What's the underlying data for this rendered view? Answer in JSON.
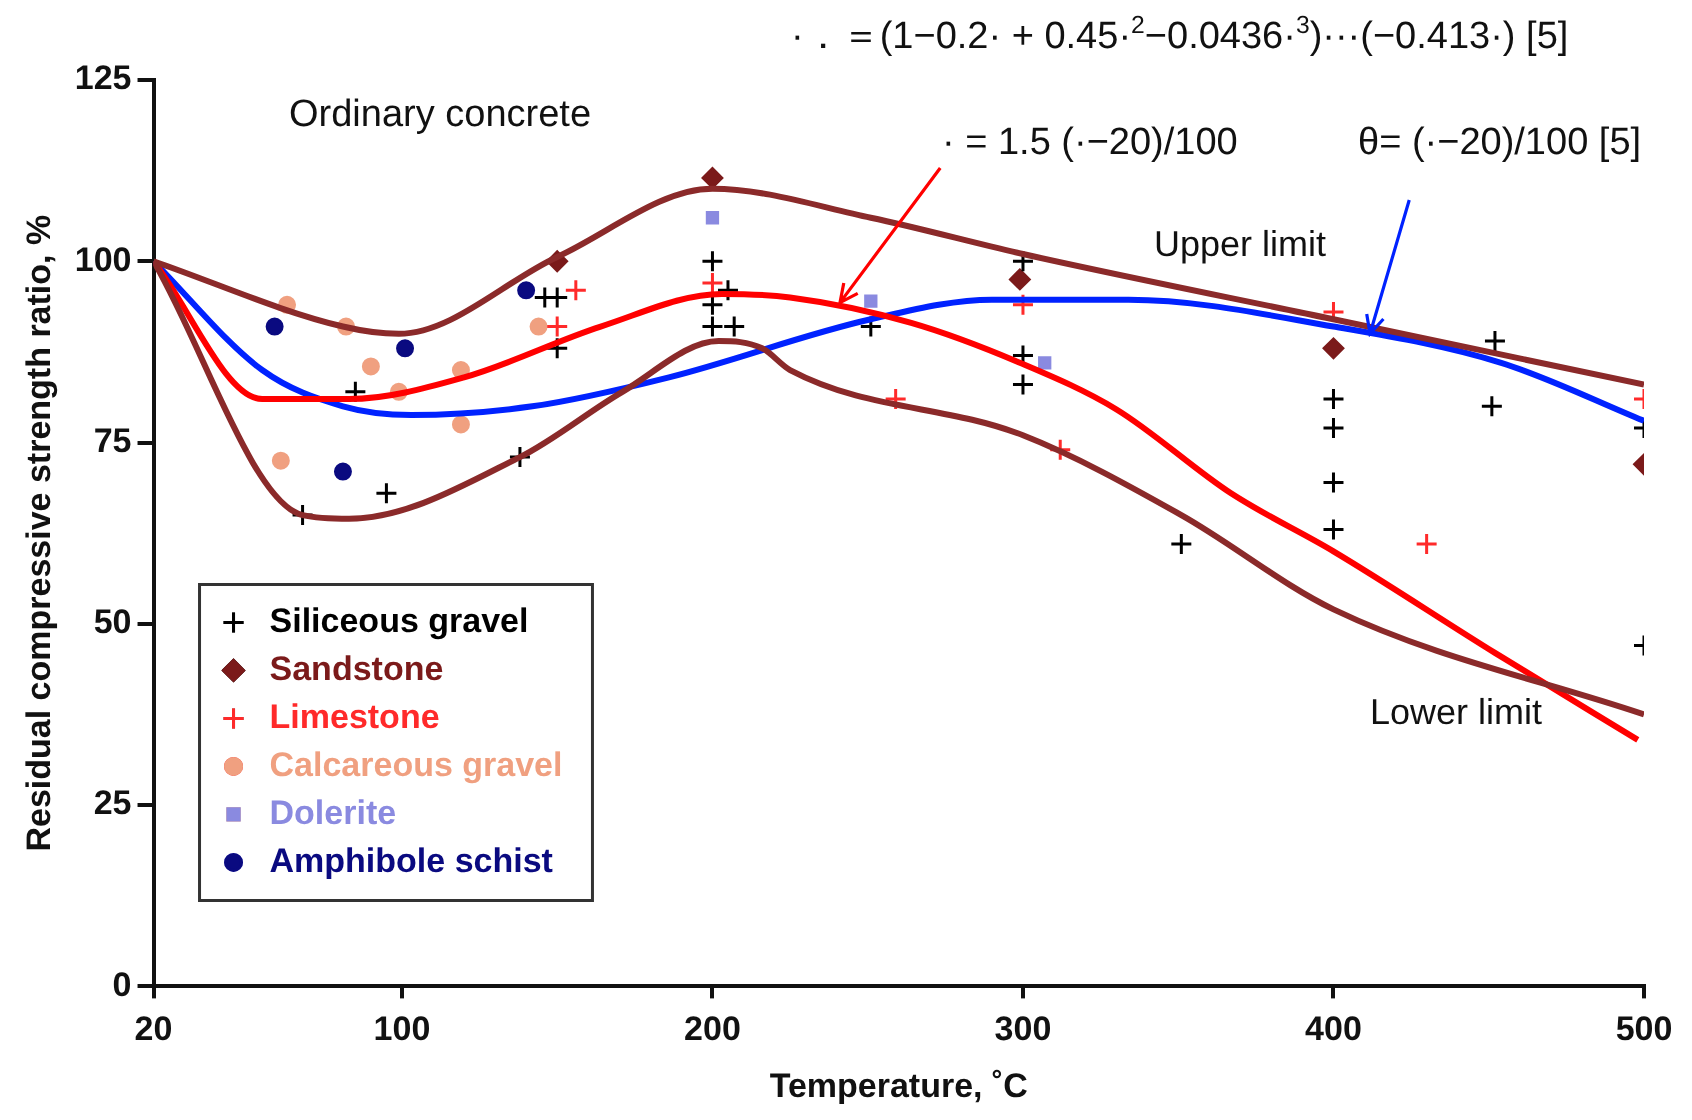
{
  "chart_data": {
    "type": "scatter",
    "xlabel": "Temperature, ˚C",
    "ylabel": "Residual compressive strength ratio, %",
    "xlim": [
      20,
      500
    ],
    "xticks": [
      20,
      100,
      200,
      300,
      400,
      500
    ],
    "ylim": [
      0,
      125
    ],
    "yticks": [
      0,
      25,
      50,
      75,
      100,
      125
    ],
    "grid": false,
    "legend": "bottom left",
    "annotations": [
      "·．＝(1−0.2· + 0.45·$^{2}$−0.0436·$^{3}$)···(−0.413·) [5]",
      "Ordinary concrete",
      {
        "text": "· = 1.5 (·−20)/100",
        "x": 241,
        "y": 94.3
      },
      {
        "text": "θ= (·−20)/100 [5]",
        "x": 412,
        "y": 90
      },
      "Upper limit",
      "Lower limit"
    ],
    "series": [
      {
        "type": "line",
        "color": "#8b2a2a",
        "marker": "none",
        "x": [
          20,
          81,
          99,
          150,
          200,
          251,
          300,
          400,
          500
        ],
        "values": [
          100,
          91,
          90,
          100.6,
          110,
          106,
          101,
          92,
          83
        ]
      },
      {
        "type": "line",
        "color": "#8b2a2a",
        "marker": "none",
        "x": [
          20,
          68,
          83,
          138,
          171,
          202,
          216,
          225,
          300,
          351,
          400,
          500
        ],
        "values": [
          100,
          65,
          64.5,
          73,
          82,
          89,
          88,
          85,
          76,
          65,
          52,
          37.5
        ]
      },
      {
        "type": "line",
        "color": "#ff0000",
        "marker": "none",
        "x": [
          20,
          55,
          83,
          120,
          164,
          203,
          225,
          264,
          299,
          330,
          367,
          400,
          452,
          498
        ],
        "values": [
          100,
          81,
          81,
          84,
          91,
          95.5,
          95,
          91.5,
          86,
          79.6,
          68,
          60,
          46,
          34
        ]
      },
      {
        "type": "line",
        "color": "#0022ff",
        "marker": "none",
        "x": [
          20,
          55,
          81,
          103,
          142,
          186,
          251,
          290,
          334,
          400,
          454,
          500
        ],
        "values": [
          100,
          85,
          80,
          78.8,
          80,
          84,
          92,
          94.7,
          94.7,
          91,
          86,
          78
        ]
      },
      {
        "name": "Siliceous gravel",
        "type": "scatter",
        "color": "#000000",
        "marker": "cross",
        "x": [
          85,
          95,
          68,
          138,
          146,
          150,
          150,
          200,
          200,
          205,
          200,
          207,
          300,
          251,
          300,
          300,
          400,
          400,
          400,
          400,
          351,
          452,
          451,
          500,
          500
        ],
        "values": [
          82,
          68,
          65,
          73,
          95,
          95,
          88,
          100,
          94,
          96,
          91,
          91,
          100,
          91,
          87,
          83,
          81,
          77,
          69.5,
          63,
          61,
          89,
          80,
          77,
          47
        ]
      },
      {
        "name": "Sandstone",
        "type": "scatter",
        "color": "#7b1a1a",
        "marker": "diamond",
        "x": [
          150,
          200,
          299,
          400,
          500
        ],
        "values": [
          100,
          111.5,
          97.5,
          88,
          72
        ]
      },
      {
        "name": "Limestone",
        "type": "scatter",
        "color": "#ff2a2a",
        "marker": "cross",
        "x": [
          156,
          150,
          200,
          259,
          312,
          400,
          430,
          500,
          300
        ],
        "values": [
          96,
          91,
          97,
          81,
          74,
          93,
          61,
          81,
          94
        ]
      },
      {
        "name": "Calcareous gravel",
        "type": "scatter",
        "color": "#f0a080",
        "marker": "circle",
        "x": [
          63,
          82,
          90,
          119,
          119,
          99,
          61,
          144
        ],
        "values": [
          94,
          91,
          85.5,
          85,
          77.5,
          82,
          72.5,
          91
        ]
      },
      {
        "name": "Dolerite",
        "type": "scatter",
        "color": "#8a8ae0",
        "marker": "square",
        "x": [
          200,
          251,
          307
        ],
        "values": [
          106,
          94.5,
          86
        ]
      },
      {
        "name": "Amphibole schist",
        "type": "scatter",
        "color": "#0a0a80",
        "marker": "circle",
        "x": [
          59,
          81,
          101,
          140
        ],
        "values": [
          91,
          71,
          88,
          96
        ]
      }
    ]
  }
}
